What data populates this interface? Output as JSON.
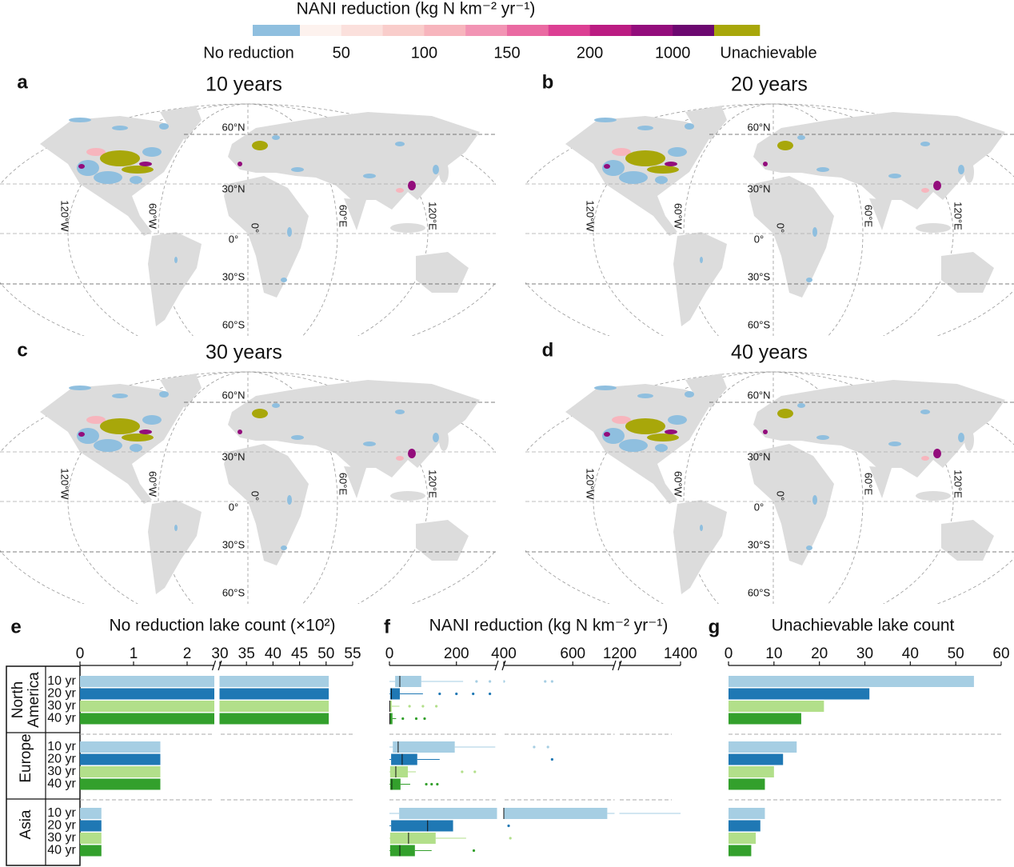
{
  "legend": {
    "title": "NANI reduction (kg N km⁻² yr⁻¹)",
    "colors": [
      "#8fbfdf",
      "#fdf2ee",
      "#fbe0dc",
      "#f9cdcb",
      "#f7b5bd",
      "#f294b4",
      "#ea6aa2",
      "#dc3f93",
      "#bb1c82",
      "#930d7c",
      "#6c0870",
      "#a8a70a"
    ],
    "labels": [
      "No reduction",
      50,
      100,
      150,
      200,
      1000,
      "Unachievable"
    ]
  },
  "map_grid": {
    "lat_labels": [
      "60°N",
      "30°N",
      "0°",
      "30°S",
      "60°S"
    ],
    "lon_labels": [
      "120°W",
      "60°W",
      "0°",
      "60°E",
      "120°E"
    ]
  },
  "maps": [
    {
      "letter": "a",
      "title": "10 years"
    },
    {
      "letter": "b",
      "title": "20 years"
    },
    {
      "letter": "c",
      "title": "30 years"
    },
    {
      "letter": "d",
      "title": "40 years"
    }
  ],
  "chart_data": [
    {
      "type": "bar",
      "letter": "e",
      "title": "No reduction lake count (×10²)",
      "groups": [
        "North America",
        "Europe",
        "Asia"
      ],
      "categories": [
        "10 yr",
        "20 yr",
        "30 yr",
        "40 yr"
      ],
      "colors": [
        "#a6cee3",
        "#1f78b4",
        "#b2df8a",
        "#33a02c"
      ],
      "xlim": [
        0,
        55
      ],
      "xsegments": [
        [
          0,
          2.5
        ],
        [
          30,
          55
        ]
      ],
      "xticks": [
        0,
        1,
        2,
        30,
        35,
        40,
        45,
        50,
        55
      ],
      "values": [
        [
          50.5,
          50.5,
          50.5,
          50.5
        ],
        [
          1.5,
          1.5,
          1.5,
          1.5
        ],
        [
          0.4,
          0.4,
          0.4,
          0.4
        ]
      ]
    },
    {
      "type": "box",
      "letter": "f",
      "title": "NANI reduction (kg N km⁻² yr⁻¹)",
      "xlim": [
        0,
        1400
      ],
      "xsegments": [
        [
          0,
          320
        ],
        [
          400,
          720
        ],
        [
          1200,
          1400
        ]
      ],
      "xticks": [
        0,
        200,
        400,
        600,
        1200,
        1400
      ],
      "values": [
        [
          {
            "min": 0,
            "q1": 17,
            "median": 31,
            "q3": 95,
            "max": 220,
            "outliers": [
              260,
              300,
              400,
              520,
              540
            ]
          },
          {
            "min": 0,
            "q1": 2,
            "median": 6,
            "q3": 31,
            "max": 100,
            "outliers": [
              150,
              200,
              250,
              300
            ]
          },
          {
            "min": 0,
            "q1": 0,
            "median": 1,
            "q3": 7,
            "max": 30,
            "outliers": [
              60,
              100,
              140
            ]
          },
          {
            "min": 0,
            "q1": 0,
            "median": 1,
            "q3": 9,
            "max": 20,
            "outliers": [
              40,
              80,
              105
            ]
          }
        ],
        [
          {
            "min": 0,
            "q1": 10,
            "median": 26,
            "q3": 195,
            "max": 316,
            "outliers": [
              488,
              528
            ]
          },
          {
            "min": 0,
            "q1": 5,
            "median": 38,
            "q3": 83,
            "max": 150,
            "outliers": [
              540
            ]
          },
          {
            "min": 0,
            "q1": 2,
            "median": 19,
            "q3": 55,
            "max": 79,
            "outliers": [
              217,
              255
            ]
          },
          {
            "min": 0,
            "q1": 2,
            "median": 7,
            "q3": 33,
            "max": 62,
            "outliers": [
              110,
              126,
              143
            ]
          }
        ],
        [
          {
            "min": 0,
            "q1": 29,
            "median": 400,
            "q3": 700,
            "max": 1400,
            "outliers": []
          },
          {
            "min": 0,
            "q1": 5,
            "median": 114,
            "q3": 190,
            "max": 190,
            "outliers": [
              414
            ]
          },
          {
            "min": 0,
            "q1": 2,
            "median": 57,
            "q3": 138,
            "max": 229,
            "outliers": [
              419
            ]
          },
          {
            "min": 0,
            "q1": 2,
            "median": 31,
            "q3": 76,
            "max": 126,
            "outliers": [
              252
            ]
          }
        ]
      ]
    },
    {
      "type": "bar",
      "letter": "g",
      "title": "Unachievable lake count",
      "xlim": [
        0,
        60
      ],
      "xsegments": [
        [
          0,
          60
        ]
      ],
      "xticks": [
        0,
        10,
        20,
        30,
        40,
        50,
        60
      ],
      "values": [
        [
          54,
          31,
          21,
          16
        ],
        [
          15,
          12,
          10,
          8
        ],
        [
          8,
          7,
          6,
          5
        ]
      ]
    }
  ]
}
